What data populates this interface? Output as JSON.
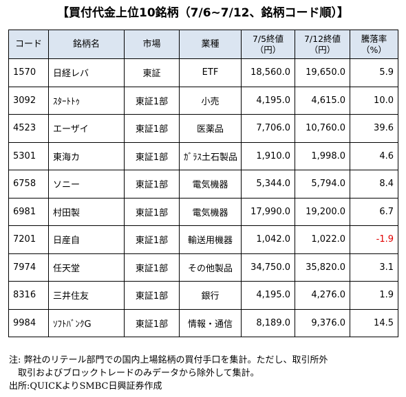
{
  "title": "【買付代金上位10銘柄（7/6~7/12、銘柄コード順）】",
  "headers": {
    "code": "コード",
    "name": "銘柄名",
    "market": "市場",
    "sector": "業種",
    "price1_line1": "7/5終値",
    "price1_line2": "（円）",
    "price2_line1": "7/12終値",
    "price2_line2": "（円）",
    "change_line1": "騰落率",
    "change_line2": "（%）"
  },
  "rows": [
    {
      "code": "1570",
      "name": "日経レバ",
      "market": "東証",
      "sector": "ETF",
      "price1": "18,560.0",
      "price2": "19,650.0",
      "change": "5.9"
    },
    {
      "code": "3092",
      "name": "ｽﾀｰﾄﾄｩ",
      "market": "東証1部",
      "sector": "小売",
      "price1": "4,195.0",
      "price2": "4,615.0",
      "change": "10.0"
    },
    {
      "code": "4523",
      "name": "エーザイ",
      "market": "東証1部",
      "sector": "医薬品",
      "price1": "7,706.0",
      "price2": "10,760.0",
      "change": "39.6"
    },
    {
      "code": "5301",
      "name": "東海カ",
      "market": "東証1部",
      "sector": "ｶﾞﾗｽ土石製品",
      "price1": "1,910.0",
      "price2": "1,998.0",
      "change": "4.6"
    },
    {
      "code": "6758",
      "name": "ソニー",
      "market": "東証1部",
      "sector": "電気機器",
      "price1": "5,344.0",
      "price2": "5,794.0",
      "change": "8.4"
    },
    {
      "code": "6981",
      "name": "村田製",
      "market": "東証1部",
      "sector": "電気機器",
      "price1": "17,990.0",
      "price2": "19,200.0",
      "change": "6.7"
    },
    {
      "code": "7201",
      "name": "日産自",
      "market": "東証1部",
      "sector": "輸送用機器",
      "price1": "1,042.0",
      "price2": "1,022.0",
      "change": "-1.9"
    },
    {
      "code": "7974",
      "name": "任天堂",
      "market": "東証1部",
      "sector": "その他製品",
      "price1": "34,750.0",
      "price2": "35,820.0",
      "change": "3.1"
    },
    {
      "code": "8316",
      "name": "三井住友",
      "market": "東証1部",
      "sector": "銀行",
      "price1": "4,195.0",
      "price2": "4,276.0",
      "change": "1.9"
    },
    {
      "code": "9984",
      "name": "ｿﾌﾄﾊﾞﾝｸG",
      "market": "東証1部",
      "sector": "情報・通信",
      "price1": "8,189.0",
      "price2": "9,376.0",
      "change": "14.5"
    }
  ],
  "notes": {
    "line1": "注: 弊社のリテール部門での国内上場銘柄の買付手口を集計。ただし、取引所外",
    "line2": "取引およびブロックトレードのみデータから除外して集計。",
    "line3": "出所:QUICKよりSMBC日興証券作成"
  },
  "colors": {
    "header_bg": "#dbe5f1",
    "negative": "#e00000"
  }
}
